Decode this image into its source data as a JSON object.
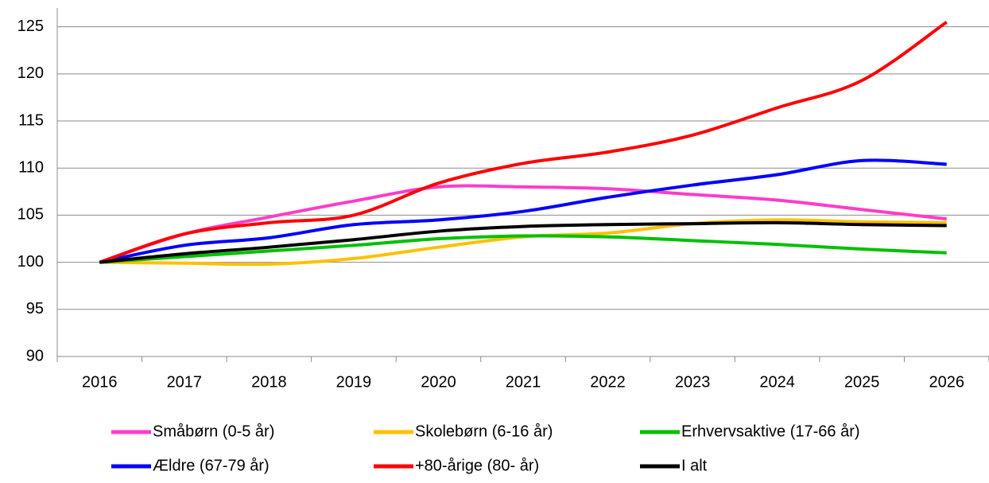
{
  "chart_data": {
    "type": "line",
    "categories": [
      "2016",
      "2017",
      "2018",
      "2019",
      "2020",
      "2021",
      "2022",
      "2023",
      "2024",
      "2025",
      "2026"
    ],
    "series": [
      {
        "name": "Småbørn (0-5 år)",
        "color": "#ff3cc8",
        "values": [
          100,
          103,
          104.8,
          106.5,
          108,
          108,
          107.8,
          107.2,
          106.6,
          105.6,
          104.6
        ]
      },
      {
        "name": "Skolebørn (6-16 år)",
        "color": "#ffc000",
        "values": [
          100,
          99.9,
          99.8,
          100.4,
          101.6,
          102.7,
          103.1,
          104.1,
          104.5,
          104.3,
          104.2
        ]
      },
      {
        "name": "Erhvervsaktive (17-66 år)",
        "color": "#00c000",
        "values": [
          100,
          100.6,
          101.2,
          101.8,
          102.5,
          102.8,
          102.7,
          102.3,
          101.9,
          101.4,
          101.0
        ]
      },
      {
        "name": "Ældre (67-79 år)",
        "color": "#0000ff",
        "values": [
          100,
          101.8,
          102.6,
          104.0,
          104.5,
          105.4,
          106.9,
          108.2,
          109.3,
          110.8,
          110.4
        ]
      },
      {
        "name": "+80-årige (80- år)",
        "color": "#ff0000",
        "values": [
          100,
          103,
          104.2,
          105.0,
          108.4,
          110.5,
          111.7,
          113.5,
          116.4,
          119.3,
          125.5
        ]
      },
      {
        "name": "I alt",
        "color": "#000000",
        "values": [
          100,
          100.9,
          101.6,
          102.4,
          103.3,
          103.8,
          104.0,
          104.1,
          104.2,
          104.0,
          103.9
        ]
      }
    ],
    "ylim": [
      90,
      127
    ],
    "yticks": [
      90,
      95,
      100,
      105,
      110,
      115,
      120,
      125
    ],
    "grid": true,
    "legend": "bottom"
  }
}
